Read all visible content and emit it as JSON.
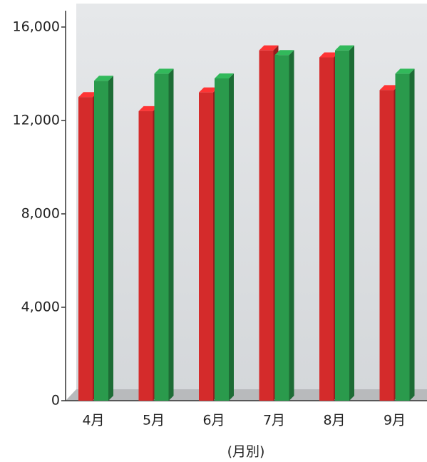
{
  "chart_data": {
    "type": "bar",
    "x_label": "(月別)",
    "categories": [
      "4月",
      "5月",
      "6月",
      "7月",
      "8月",
      "9月"
    ],
    "series": [
      {
        "color": "#d42b2b",
        "values": [
          13000,
          12400,
          13200,
          15000,
          14700,
          13300
        ]
      },
      {
        "color": "#2a9a4c",
        "values": [
          13700,
          14000,
          13800,
          14800,
          15000,
          14000
        ]
      }
    ],
    "ylim": [
      0,
      16700
    ],
    "yticks": [
      0,
      {
        "value": 4000,
        "label": "4,000"
      },
      {
        "value": 8000,
        "label": "8,000"
      },
      {
        "value": 12000,
        "label": "12,000"
      },
      {
        "value": 16000,
        "label": "16,000"
      }
    ]
  }
}
